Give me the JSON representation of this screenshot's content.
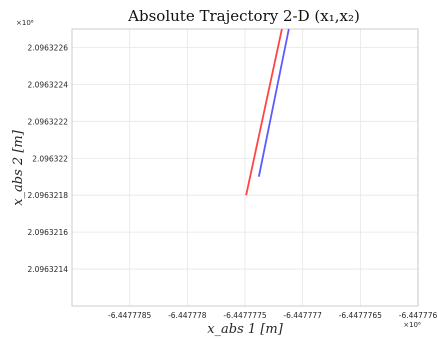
{
  "chart_data": {
    "type": "line",
    "title": "Absolute Trajectory 2-D (x₁,x₂)",
    "xlabel": "x_abs 1 [m]",
    "ylabel": "x_abs 2 [m]",
    "x_multiplier": "×10⁶",
    "y_multiplier": "×10⁶",
    "x_ticks": [
      "-6.4477785",
      "-6.447778",
      "-6.4477775",
      "-6.447777",
      "-6.4477765",
      "-6.447776"
    ],
    "y_ticks": [
      "2.0963214",
      "2.0963216",
      "2.0963218",
      "2.096322",
      "2.0963222",
      "2.0963224",
      "2.0963226"
    ],
    "xlim": [
      -6.447779,
      -6.447776
    ],
    "ylim": [
      2.0963212,
      2.0963227
    ],
    "grid": true,
    "series": [
      {
        "color": "#ff4444",
        "x": [
          -6.44777749,
          -6.44777718
        ],
        "y": [
          2.0963218,
          2.0963227
        ]
      },
      {
        "color": "#5b5bff",
        "x": [
          -6.44777738,
          -6.44777712
        ],
        "y": [
          2.0963219,
          2.0963227
        ]
      }
    ]
  }
}
